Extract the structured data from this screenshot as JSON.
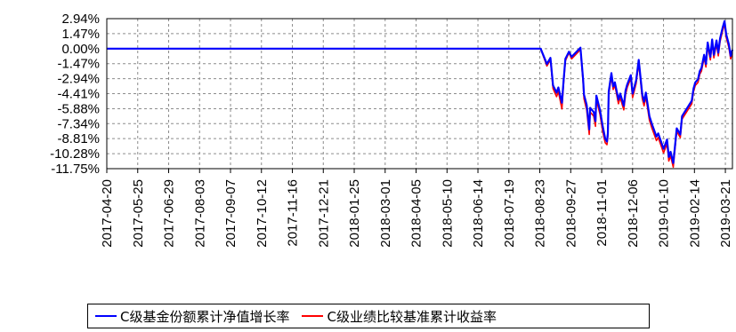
{
  "chart_data": {
    "type": "line",
    "title": "",
    "xlabel": "",
    "ylabel": "",
    "x_start": "2017-04-20",
    "x_end": "2019-03-29",
    "xticks": [
      "2017-04-20",
      "2017-05-25",
      "2017-06-29",
      "2017-08-03",
      "2017-09-07",
      "2017-10-12",
      "2017-11-16",
      "2017-12-21",
      "2018-01-25",
      "2018-03-01",
      "2018-04-05",
      "2018-05-10",
      "2018-06-14",
      "2018-07-19",
      "2018-08-23",
      "2018-09-27",
      "2018-11-01",
      "2018-12-06",
      "2019-01-10",
      "2019-02-14",
      "2019-03-21"
    ],
    "ylim": [
      -11.75,
      2.94
    ],
    "yticks": [
      2.94,
      1.47,
      0.0,
      -1.47,
      -2.94,
      -4.41,
      -5.88,
      -7.34,
      -8.81,
      -10.28,
      -11.75
    ],
    "ytick_labels": [
      "2.94%",
      "1.47%",
      "0.00%",
      "-1.47%",
      "-2.94%",
      "-4.41%",
      "-5.88%",
      "-7.34%",
      "-8.81%",
      "-10.28%",
      "-11.75%"
    ],
    "grid": true,
    "legend_position": "bottom",
    "series": [
      {
        "name": "C级基金份额累计净值增长率",
        "color": "#0000ff",
        "points": [
          [
            "2017-04-20",
            0.0
          ],
          [
            "2018-08-16",
            0.0
          ],
          [
            "2018-08-24",
            0.0
          ],
          [
            "2018-08-31",
            -1.5
          ],
          [
            "2018-09-04",
            -0.9
          ],
          [
            "2018-09-07",
            -3.6
          ],
          [
            "2018-09-11",
            -4.3
          ],
          [
            "2018-09-13",
            -3.8
          ],
          [
            "2018-09-17",
            -5.3
          ],
          [
            "2018-09-19",
            -3.1
          ],
          [
            "2018-09-21",
            -1.0
          ],
          [
            "2018-09-25",
            -0.3
          ],
          [
            "2018-09-28",
            -0.8
          ],
          [
            "2018-10-08",
            0.1
          ],
          [
            "2018-10-11",
            -3.0
          ],
          [
            "2018-10-12",
            -4.5
          ],
          [
            "2018-10-15",
            -5.5
          ],
          [
            "2018-10-18",
            -7.9
          ],
          [
            "2018-10-19",
            -5.8
          ],
          [
            "2018-10-23",
            -6.2
          ],
          [
            "2018-10-25",
            -7.1
          ],
          [
            "2018-10-26",
            -4.6
          ],
          [
            "2018-10-30",
            -6.0
          ],
          [
            "2018-11-02",
            -7.5
          ],
          [
            "2018-11-05",
            -8.8
          ],
          [
            "2018-11-07",
            -9.1
          ],
          [
            "2018-11-08",
            -8.3
          ],
          [
            "2018-11-09",
            -4.2
          ],
          [
            "2018-11-12",
            -2.4
          ],
          [
            "2018-11-14",
            -3.7
          ],
          [
            "2018-11-16",
            -3.3
          ],
          [
            "2018-11-20",
            -5.0
          ],
          [
            "2018-11-22",
            -4.4
          ],
          [
            "2018-11-26",
            -5.6
          ],
          [
            "2018-11-28",
            -4.1
          ],
          [
            "2018-11-30",
            -3.5
          ],
          [
            "2018-12-04",
            -2.6
          ],
          [
            "2018-12-06",
            -4.4
          ],
          [
            "2018-12-10",
            -3.1
          ],
          [
            "2018-12-13",
            -1.1
          ],
          [
            "2018-12-17",
            -4.5
          ],
          [
            "2018-12-19",
            -5.2
          ],
          [
            "2018-12-21",
            -4.3
          ],
          [
            "2018-12-25",
            -6.6
          ],
          [
            "2018-12-28",
            -7.4
          ],
          [
            "2019-01-02",
            -8.6
          ],
          [
            "2019-01-04",
            -8.3
          ],
          [
            "2019-01-08",
            -9.3
          ],
          [
            "2019-01-10",
            -9.8
          ],
          [
            "2019-01-14",
            -8.9
          ],
          [
            "2019-01-16",
            -10.6
          ],
          [
            "2019-01-18",
            -10.1
          ],
          [
            "2019-01-21",
            -11.2
          ],
          [
            "2019-01-23",
            -9.5
          ],
          [
            "2019-01-25",
            -7.8
          ],
          [
            "2019-01-29",
            -8.4
          ],
          [
            "2019-01-31",
            -6.6
          ],
          [
            "2019-02-11",
            -5.1
          ],
          [
            "2019-02-13",
            -3.9
          ],
          [
            "2019-02-15",
            -3.3
          ],
          [
            "2019-02-18",
            -3.0
          ],
          [
            "2019-02-20",
            -2.2
          ],
          [
            "2019-02-22",
            -1.9
          ],
          [
            "2019-02-25",
            -0.6
          ],
          [
            "2019-02-27",
            -1.5
          ],
          [
            "2019-03-01",
            0.6
          ],
          [
            "2019-03-04",
            -0.8
          ],
          [
            "2019-03-06",
            0.9
          ],
          [
            "2019-03-08",
            -0.6
          ],
          [
            "2019-03-11",
            0.8
          ],
          [
            "2019-03-13",
            -0.4
          ],
          [
            "2019-03-15",
            1.0
          ],
          [
            "2019-03-18",
            2.1
          ],
          [
            "2019-03-20",
            2.7
          ],
          [
            "2019-03-22",
            1.4
          ],
          [
            "2019-03-25",
            0.4
          ],
          [
            "2019-03-27",
            -0.7
          ],
          [
            "2019-03-29",
            -0.1
          ]
        ]
      },
      {
        "name": "C级业绩比较基准累计收益率",
        "color": "#ff0000",
        "points": [
          [
            "2017-04-20",
            0.0
          ],
          [
            "2018-08-16",
            0.0
          ],
          [
            "2018-08-24",
            0.0
          ],
          [
            "2018-08-31",
            -1.7
          ],
          [
            "2018-09-04",
            -1.1
          ],
          [
            "2018-09-07",
            -3.9
          ],
          [
            "2018-09-11",
            -4.7
          ],
          [
            "2018-09-13",
            -4.2
          ],
          [
            "2018-09-17",
            -5.9
          ],
          [
            "2018-09-19",
            -3.4
          ],
          [
            "2018-09-21",
            -1.2
          ],
          [
            "2018-09-25",
            -0.4
          ],
          [
            "2018-09-28",
            -1.0
          ],
          [
            "2018-10-08",
            -0.1
          ],
          [
            "2018-10-11",
            -3.3
          ],
          [
            "2018-10-12",
            -4.9
          ],
          [
            "2018-10-15",
            -6.0
          ],
          [
            "2018-10-18",
            -8.4
          ],
          [
            "2018-10-19",
            -6.2
          ],
          [
            "2018-10-23",
            -6.6
          ],
          [
            "2018-10-25",
            -7.6
          ],
          [
            "2018-10-26",
            -5.0
          ],
          [
            "2018-10-30",
            -6.4
          ],
          [
            "2018-11-02",
            -8.0
          ],
          [
            "2018-11-05",
            -9.2
          ],
          [
            "2018-11-07",
            -9.4
          ],
          [
            "2018-11-08",
            -8.6
          ],
          [
            "2018-11-09",
            -4.5
          ],
          [
            "2018-11-12",
            -2.7
          ],
          [
            "2018-11-14",
            -4.0
          ],
          [
            "2018-11-16",
            -3.6
          ],
          [
            "2018-11-20",
            -5.4
          ],
          [
            "2018-11-22",
            -4.8
          ],
          [
            "2018-11-26",
            -6.0
          ],
          [
            "2018-11-28",
            -4.5
          ],
          [
            "2018-11-30",
            -3.8
          ],
          [
            "2018-12-04",
            -2.9
          ],
          [
            "2018-12-06",
            -4.8
          ],
          [
            "2018-12-10",
            -3.4
          ],
          [
            "2018-12-13",
            -1.4
          ],
          [
            "2018-12-17",
            -4.9
          ],
          [
            "2018-12-19",
            -5.6
          ],
          [
            "2018-12-21",
            -4.7
          ],
          [
            "2018-12-25",
            -7.0
          ],
          [
            "2018-12-28",
            -7.8
          ],
          [
            "2019-01-02",
            -9.0
          ],
          [
            "2019-01-04",
            -8.7
          ],
          [
            "2019-01-08",
            -9.7
          ],
          [
            "2019-01-10",
            -10.2
          ],
          [
            "2019-01-14",
            -9.3
          ],
          [
            "2019-01-16",
            -11.0
          ],
          [
            "2019-01-18",
            -10.5
          ],
          [
            "2019-01-21",
            -11.6
          ],
          [
            "2019-01-23",
            -9.8
          ],
          [
            "2019-01-25",
            -8.1
          ],
          [
            "2019-01-29",
            -8.7
          ],
          [
            "2019-01-31",
            -6.9
          ],
          [
            "2019-02-11",
            -5.4
          ],
          [
            "2019-02-13",
            -4.2
          ],
          [
            "2019-02-15",
            -3.6
          ],
          [
            "2019-02-18",
            -3.3
          ],
          [
            "2019-02-20",
            -2.5
          ],
          [
            "2019-02-22",
            -2.2
          ],
          [
            "2019-02-25",
            -0.9
          ],
          [
            "2019-02-27",
            -1.8
          ],
          [
            "2019-03-01",
            0.3
          ],
          [
            "2019-03-04",
            -1.1
          ],
          [
            "2019-03-06",
            0.6
          ],
          [
            "2019-03-08",
            -0.9
          ],
          [
            "2019-03-11",
            0.5
          ],
          [
            "2019-03-13",
            -0.7
          ],
          [
            "2019-03-15",
            0.7
          ],
          [
            "2019-03-18",
            1.8
          ],
          [
            "2019-03-20",
            2.4
          ],
          [
            "2019-03-22",
            1.1
          ],
          [
            "2019-03-25",
            0.1
          ],
          [
            "2019-03-27",
            -1.0
          ],
          [
            "2019-03-29",
            -0.4
          ]
        ]
      }
    ]
  },
  "legend": {
    "items": [
      {
        "label": "C级基金份额累计净值增长率",
        "color": "#0000ff"
      },
      {
        "label": "C级业绩比较基准累计收益率",
        "color": "#ff0000"
      }
    ]
  }
}
